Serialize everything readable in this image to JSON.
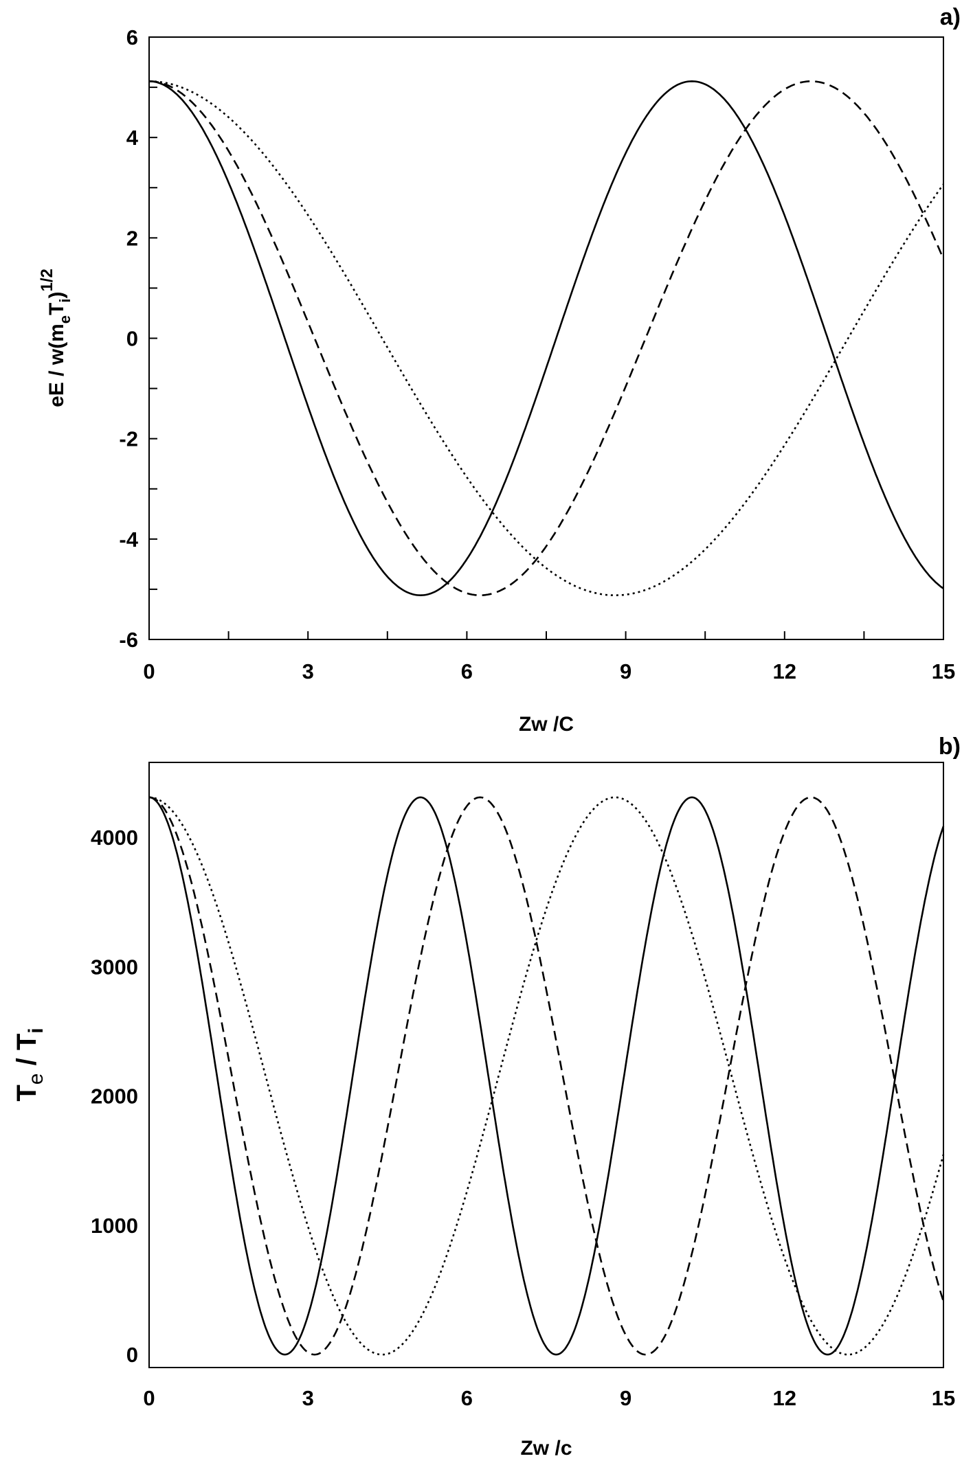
{
  "chart_data": [
    {
      "type": "line",
      "panel_label": "a)",
      "xlabel": {
        "main": "Zw",
        "suffix": " /C"
      },
      "ylabel": {
        "main": "eE / w(m",
        "sub1": "e",
        "mid": "T",
        "sub2": "i",
        "close": ")",
        "sup": "1/2"
      },
      "xlim": [
        0,
        15
      ],
      "ylim": [
        -6,
        6
      ],
      "xticks": [
        "0",
        "3",
        "6",
        "9",
        "12",
        "15"
      ],
      "yticks": [
        "-6",
        "-4",
        "-2",
        "0",
        "2",
        "4",
        "6"
      ],
      "grid": false,
      "series": [
        {
          "name": "solid",
          "style": "solid",
          "function": "A*cos(2*pi*x/P)",
          "A": 5.12,
          "P": 10.25
        },
        {
          "name": "dashed",
          "style": "dashed",
          "function": "A*cos(2*pi*x/P)",
          "A": 5.12,
          "P": 12.5
        },
        {
          "name": "dotted",
          "style": "dotted",
          "function": "A*cos(2*pi*x/P)",
          "A": 5.12,
          "P": 17.6
        }
      ]
    },
    {
      "type": "line",
      "panel_label": "b)",
      "xlabel": {
        "main": "Zw",
        "suffix": " /c"
      },
      "ylabel": {
        "main": "T",
        "sub1": "e",
        "mid": " / T",
        "sub2": "i"
      },
      "xlim": [
        0,
        15
      ],
      "ylim": [
        -100,
        4580
      ],
      "xticks": [
        "0",
        "3",
        "6",
        "9",
        "12",
        "15"
      ],
      "yticks": [
        "0",
        "1000",
        "2000",
        "3000",
        "4000"
      ],
      "grid": false,
      "series": [
        {
          "name": "solid",
          "style": "solid",
          "function": "A*cos(2*pi*x/P)^2",
          "A": 4310,
          "P": 10.25
        },
        {
          "name": "dashed",
          "style": "dashed",
          "function": "A*cos(2*pi*x/P)^2",
          "A": 4310,
          "P": 12.5
        },
        {
          "name": "dotted",
          "style": "dotted",
          "function": "A*cos(2*pi*x/P)^2",
          "A": 4310,
          "P": 17.6
        }
      ]
    }
  ]
}
